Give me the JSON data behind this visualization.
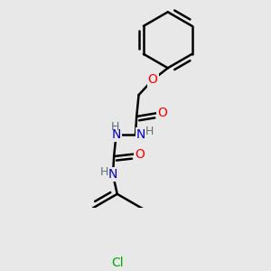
{
  "background_color": "#e8e8e8",
  "atom_colors": {
    "O": "#ff0000",
    "N": "#0000cc",
    "Cl": "#00aa00",
    "H": "#607070"
  },
  "bond_width": 1.8,
  "figsize": [
    3.0,
    3.0
  ],
  "dpi": 100,
  "ring_r": 0.13,
  "xlim": [
    0.05,
    0.95
  ],
  "ylim": [
    0.02,
    0.98
  ]
}
